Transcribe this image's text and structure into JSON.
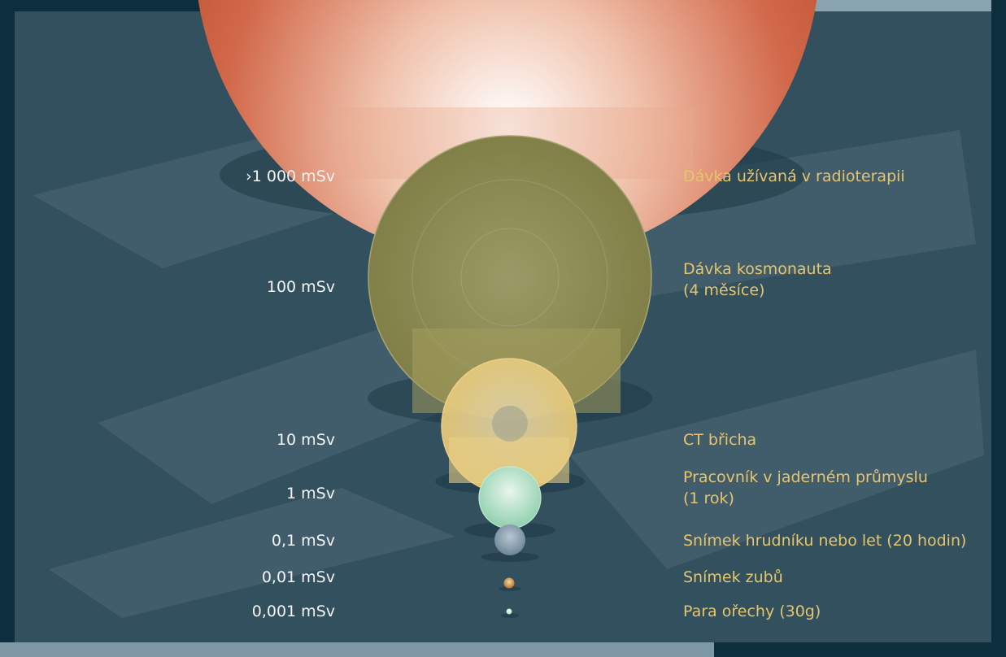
{
  "colors": {
    "background": "#33505f",
    "value_text": "#f4f4f4",
    "description_text": "#e6c56c",
    "radiotherapy": "#c0553a",
    "cosmonaut": "#8c8a4e",
    "ct": "#e6c87a",
    "nuclear_worker": "#a9dcc0",
    "chest_xray": "#8ea3b3",
    "dental": "#c98a3a",
    "brazil_nuts": "#b9e6c6"
  },
  "doses": [
    {
      "id": "radiotherapy",
      "value": "›1 000 mSv",
      "description": [
        "Dávka užívaná v radioterapii"
      ]
    },
    {
      "id": "cosmonaut",
      "value": "100 mSv",
      "description": [
        "Dávka kosmonauta",
        "(4 měsíce)"
      ]
    },
    {
      "id": "ct",
      "value": "10 mSv",
      "description": [
        "CT břicha"
      ]
    },
    {
      "id": "nuclear_worker",
      "value": "1 mSv",
      "description": [
        "Pracovník v jaderném průmyslu",
        "(1 rok)"
      ]
    },
    {
      "id": "chest_xray",
      "value": "0,1 mSv",
      "description": [
        "Snímek hrudníku nebo let (20 hodin)"
      ]
    },
    {
      "id": "dental",
      "value": "0,01 mSv",
      "description": [
        "Snímek zubů"
      ]
    },
    {
      "id": "brazil_nuts",
      "value": "0,001 mSv",
      "description": [
        "Para ořechy (30g)"
      ]
    }
  ]
}
